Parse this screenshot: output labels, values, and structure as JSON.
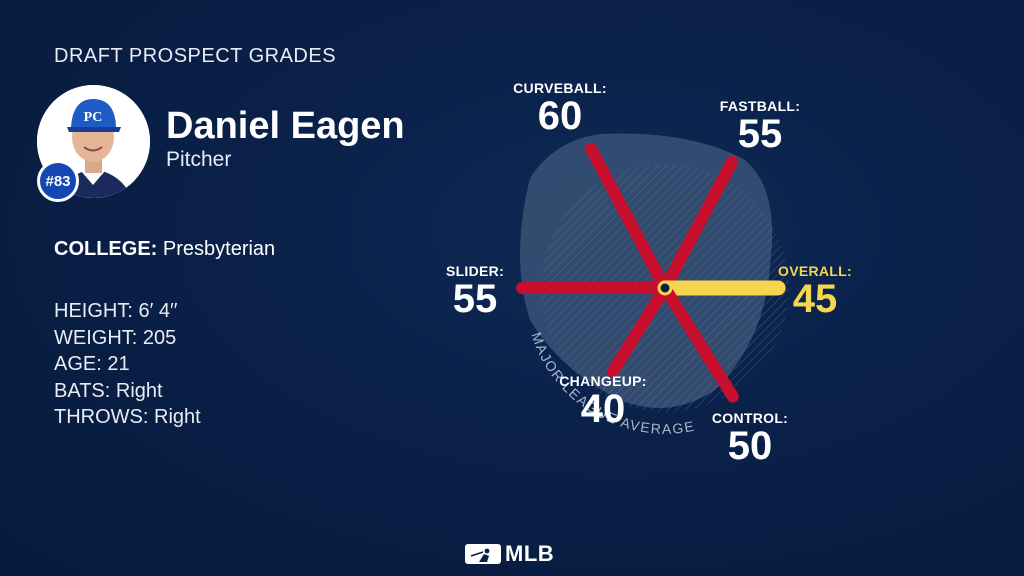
{
  "header": {
    "title": "DRAFT PROSPECT GRADES"
  },
  "player": {
    "name": "Daniel Eagen",
    "position": "Pitcher",
    "number": "#83",
    "college_key": "COLLEGE:",
    "college_value": "Presbyterian",
    "stats": [
      {
        "label": "HEIGHT:",
        "value": "6′ 4′′"
      },
      {
        "label": "WEIGHT:",
        "value": "205"
      },
      {
        "label": "AGE:",
        "value": "21"
      },
      {
        "label": "BATS:",
        "value": "Right"
      },
      {
        "label": "THROWS:",
        "value": "Right"
      }
    ]
  },
  "chart_data": {
    "type": "radar",
    "title": "",
    "scale": [
      20,
      80
    ],
    "baseline_label": "MAJOR LEAGUE AVERAGE",
    "grades": [
      {
        "label": "CURVEBALL:",
        "value": 60
      },
      {
        "label": "FASTBALL:",
        "value": 55
      },
      {
        "label": "OVERALL:",
        "value": 45
      },
      {
        "label": "CONTROL:",
        "value": 50
      },
      {
        "label": "CHANGEUP:",
        "value": 40
      },
      {
        "label": "SLIDER:",
        "value": 55
      }
    ],
    "colors": {
      "pitch": "#c8102e",
      "overall": "#f6d64e",
      "blob": "#3a5276"
    }
  },
  "footer": {
    "logo_text": "MLB"
  }
}
